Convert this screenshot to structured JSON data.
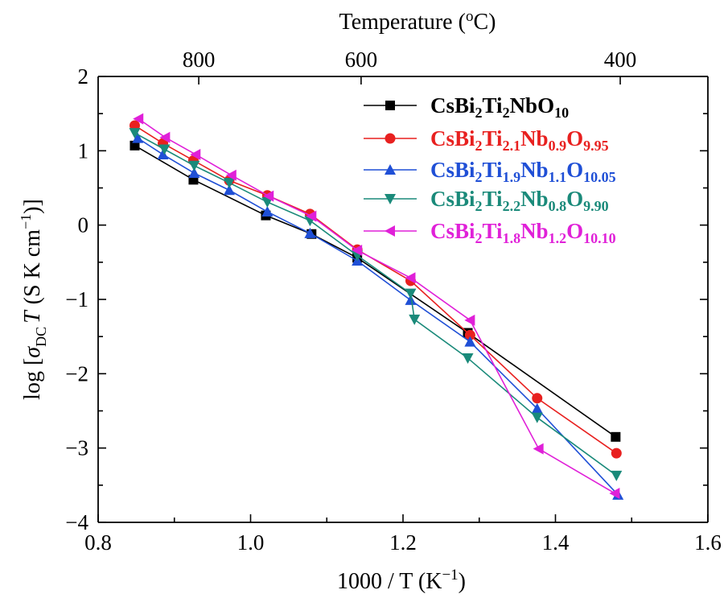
{
  "chart_data": {
    "type": "line",
    "x": {
      "label_text": "1000 / T (K",
      "label_sup": "−1",
      "label_close": ")",
      "range": [
        0.8,
        1.6
      ],
      "ticks": [
        0.8,
        1.0,
        1.2,
        1.4,
        1.6
      ],
      "tick_labels": [
        "0.8",
        "1.0",
        "1.2",
        "1.4",
        "1.6"
      ],
      "minor_ticks": [
        0.9,
        1.1,
        1.3,
        1.5
      ]
    },
    "top_axis": {
      "label_text": "Temperature (",
      "label_sup": "o",
      "label_close": "C)",
      "ticks": [
        {
          "label": "800",
          "x": 0.932
        },
        {
          "label": "600",
          "x": 1.145
        },
        {
          "label": "400",
          "x": 1.485
        }
      ]
    },
    "y": {
      "label_prefix": "log [",
      "label_sigma": "σ",
      "label_sub": "DC",
      "label_T": "T",
      "label_unit": "(S K cm",
      "label_sup": "−1",
      "label_close": ")]",
      "range": [
        -4,
        2
      ],
      "ticks": [
        -4,
        -3,
        -2,
        -1,
        0,
        1,
        2
      ],
      "tick_labels": [
        "−4",
        "−3",
        "−2",
        "−1",
        "0",
        "1",
        "2"
      ],
      "minor_ticks": [
        -3.5,
        -2.5,
        -1.5,
        -0.5,
        0.5,
        1.5
      ]
    },
    "series": [
      {
        "name": "CsBi2Ti2NbO10",
        "color": "#000000",
        "marker": "square",
        "name_parts": [
          [
            "CsBi",
            false
          ],
          [
            "2",
            true
          ],
          [
            "Ti",
            false
          ],
          [
            "2",
            true
          ],
          [
            "NbO",
            false
          ],
          [
            "10",
            true
          ]
        ],
        "points": [
          [
            0.848,
            1.07
          ],
          [
            0.925,
            0.61
          ],
          [
            1.02,
            0.13
          ],
          [
            1.08,
            -0.12
          ],
          [
            1.14,
            -0.44
          ],
          [
            1.285,
            -1.45
          ],
          [
            1.479,
            -2.85
          ]
        ]
      },
      {
        "name": "CsBi2Ti2.1Nb0.9O9.95",
        "color": "#e8201f",
        "marker": "circle",
        "name_parts": [
          [
            "CsBi",
            false
          ],
          [
            "2",
            true
          ],
          [
            "Ti",
            false
          ],
          [
            "2.1",
            true
          ],
          [
            "Nb",
            false
          ],
          [
            "0.9",
            true
          ],
          [
            "O",
            false
          ],
          [
            "9.95",
            true
          ]
        ],
        "points": [
          [
            0.848,
            1.34
          ],
          [
            0.885,
            1.1
          ],
          [
            0.925,
            0.87
          ],
          [
            0.972,
            0.6
          ],
          [
            1.022,
            0.4
          ],
          [
            1.078,
            0.15
          ],
          [
            1.14,
            -0.33
          ],
          [
            1.21,
            -0.75
          ],
          [
            1.288,
            -1.48
          ],
          [
            1.376,
            -2.33
          ],
          [
            1.48,
            -3.07
          ]
        ]
      },
      {
        "name": "CsBi2Ti1.9Nb1.1O10.05",
        "color": "#1f4fd6",
        "marker": "triangle-up",
        "name_parts": [
          [
            "CsBi",
            false
          ],
          [
            "2",
            true
          ],
          [
            "Ti",
            false
          ],
          [
            "1.9",
            true
          ],
          [
            "Nb",
            false
          ],
          [
            "1.1",
            true
          ],
          [
            "O",
            false
          ],
          [
            "10.05",
            true
          ]
        ],
        "points": [
          [
            0.852,
            1.17
          ],
          [
            0.885,
            0.95
          ],
          [
            0.926,
            0.7
          ],
          [
            0.972,
            0.47
          ],
          [
            1.022,
            0.18
          ],
          [
            1.078,
            -0.11
          ],
          [
            1.14,
            -0.48
          ],
          [
            1.21,
            -1.01
          ],
          [
            1.288,
            -1.57
          ],
          [
            1.376,
            -2.47
          ],
          [
            1.482,
            -3.63
          ]
        ]
      },
      {
        "name": "CsBi2Ti2.2Nb0.8O9.90",
        "color": "#1a8a7a",
        "marker": "triangle-down",
        "name_parts": [
          [
            "CsBi",
            false
          ],
          [
            "2",
            true
          ],
          [
            "Ti",
            false
          ],
          [
            "2.2",
            true
          ],
          [
            "Nb",
            false
          ],
          [
            "0.8",
            true
          ],
          [
            "O",
            false
          ],
          [
            "9.90",
            true
          ]
        ],
        "points": [
          [
            0.848,
            1.24
          ],
          [
            0.887,
            1.02
          ],
          [
            0.926,
            0.8
          ],
          [
            0.972,
            0.57
          ],
          [
            1.022,
            0.31
          ],
          [
            1.078,
            0.06
          ],
          [
            1.14,
            -0.41
          ],
          [
            1.21,
            -0.92
          ],
          [
            1.215,
            -1.27
          ],
          [
            1.285,
            -1.79
          ],
          [
            1.376,
            -2.59
          ],
          [
            1.48,
            -3.37
          ]
        ]
      },
      {
        "name": "CsBi2Ti1.8Nb1.2O10.10",
        "color": "#e020d8",
        "marker": "triangle-left",
        "name_parts": [
          [
            "CsBi",
            false
          ],
          [
            "2",
            true
          ],
          [
            "Ti",
            false
          ],
          [
            "1.8",
            true
          ],
          [
            "Nb",
            false
          ],
          [
            "1.2",
            true
          ],
          [
            "O",
            false
          ],
          [
            "10.10",
            true
          ]
        ],
        "points": [
          [
            0.853,
            1.43
          ],
          [
            0.888,
            1.18
          ],
          [
            0.928,
            0.95
          ],
          [
            0.975,
            0.67
          ],
          [
            1.024,
            0.39
          ],
          [
            1.08,
            0.12
          ],
          [
            1.14,
            -0.34
          ],
          [
            1.21,
            -0.71
          ],
          [
            1.288,
            -1.28
          ],
          [
            1.378,
            -3.01
          ],
          [
            1.478,
            -3.61
          ]
        ]
      }
    ]
  }
}
